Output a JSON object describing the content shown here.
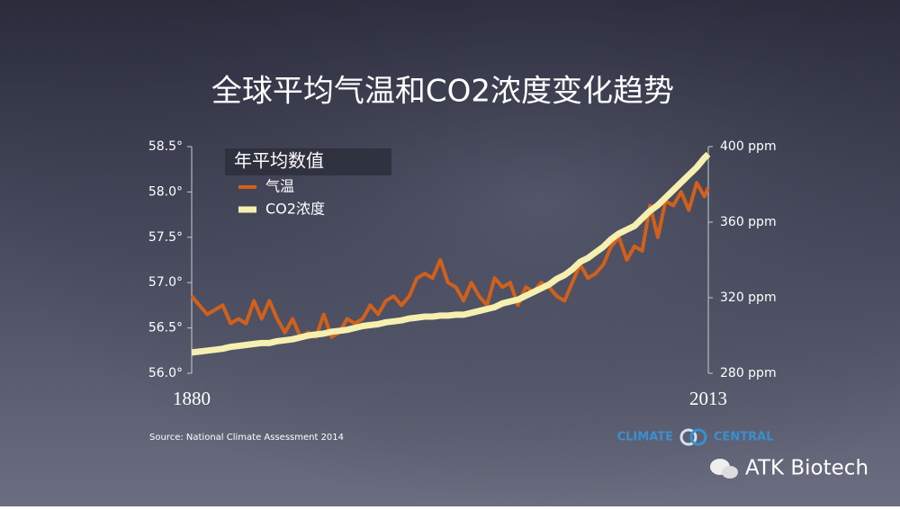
{
  "chart_data": {
    "type": "line",
    "title": "全球平均气温和CO2浓度变化趋势",
    "legend_title": "年平均数值",
    "source": "Source: National Climate Assessment 2014",
    "x": [
      1880,
      1882,
      1884,
      1886,
      1888,
      1890,
      1892,
      1894,
      1896,
      1898,
      1900,
      1902,
      1904,
      1906,
      1908,
      1910,
      1912,
      1914,
      1916,
      1918,
      1920,
      1922,
      1924,
      1926,
      1928,
      1930,
      1932,
      1934,
      1936,
      1938,
      1940,
      1942,
      1944,
      1946,
      1948,
      1950,
      1952,
      1954,
      1956,
      1958,
      1960,
      1962,
      1964,
      1966,
      1968,
      1970,
      1972,
      1974,
      1976,
      1978,
      1980,
      1982,
      1984,
      1986,
      1988,
      1990,
      1992,
      1994,
      1996,
      1998,
      2000,
      2002,
      2004,
      2006,
      2008,
      2010,
      2012,
      2013
    ],
    "series": [
      {
        "name": "气温",
        "color": "#d2601a",
        "axis": "y",
        "values": [
          56.85,
          56.75,
          56.65,
          56.7,
          56.75,
          56.55,
          56.6,
          56.55,
          56.8,
          56.6,
          56.8,
          56.6,
          56.45,
          56.6,
          56.4,
          56.45,
          56.4,
          56.65,
          56.4,
          56.45,
          56.6,
          56.55,
          56.6,
          56.75,
          56.65,
          56.8,
          56.85,
          56.75,
          56.85,
          57.05,
          57.1,
          57.05,
          57.25,
          57.0,
          56.95,
          56.8,
          57.0,
          56.85,
          56.75,
          57.05,
          56.95,
          57.0,
          56.75,
          56.95,
          56.9,
          57.0,
          56.95,
          56.85,
          56.8,
          57.0,
          57.2,
          57.05,
          57.1,
          57.2,
          57.4,
          57.5,
          57.25,
          57.4,
          57.35,
          57.85,
          57.5,
          57.9,
          57.85,
          58.0,
          57.8,
          58.1,
          57.95,
          58.05
        ]
      },
      {
        "name": "CO2浓度",
        "color": "#f6f0b0",
        "axis": "y2",
        "values": [
          291,
          291.5,
          292,
          292.5,
          293,
          294,
          294.5,
          295,
          295.5,
          296,
          296,
          297,
          297.5,
          298,
          299,
          300,
          300.5,
          301,
          302,
          302.5,
          303,
          304,
          305,
          305.5,
          306,
          307,
          307.5,
          308,
          309,
          309.5,
          310,
          310,
          310.5,
          310.5,
          311,
          311,
          312,
          313,
          314,
          315,
          317,
          318,
          319,
          321,
          323,
          325,
          327,
          330,
          332,
          335,
          339,
          341,
          344,
          347,
          351,
          354,
          356,
          358,
          362,
          366,
          369,
          373,
          377,
          381,
          385,
          389,
          394,
          396
        ]
      }
    ],
    "xlim": [
      1880,
      2013
    ],
    "xticks": [
      1880,
      2013
    ],
    "ylim": [
      56.0,
      58.5
    ],
    "yticks": [
      {
        "value": 56.0,
        "label": "56.0°"
      },
      {
        "value": 56.5,
        "label": "56.5°"
      },
      {
        "value": 57.0,
        "label": "57.0°"
      },
      {
        "value": 57.5,
        "label": "57.5°"
      },
      {
        "value": 58.0,
        "label": "58.0°"
      },
      {
        "value": 58.5,
        "label": "58.5°"
      }
    ],
    "y2lim": [
      280,
      400
    ],
    "y2ticks": [
      {
        "value": 280,
        "label": "280 ppm"
      },
      {
        "value": 320,
        "label": "320 ppm"
      },
      {
        "value": 360,
        "label": "360 ppm"
      },
      {
        "value": 400,
        "label": "400 ppm"
      }
    ]
  },
  "branding": {
    "logo_left": "CLIMATE",
    "logo_right": "CENTRAL",
    "watermark": "ATK Biotech"
  }
}
